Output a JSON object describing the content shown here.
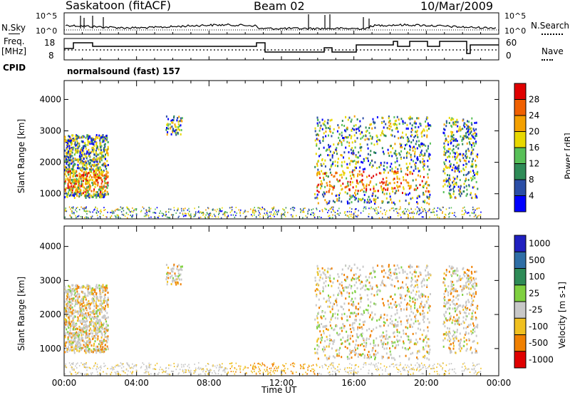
{
  "header": {
    "station": "Saskatoon (fitACF)",
    "beam": "Beam 02",
    "date": "10/Mar/2009"
  },
  "noise_panel": {
    "left_label": "N.Sky",
    "right_label": "N.Search",
    "left_ticks": [
      "10^5",
      "10^0"
    ],
    "right_ticks": [
      "10^5",
      "10^0"
    ]
  },
  "freq_panel": {
    "left_label": "Freq.",
    "left_unit": "[MHz]",
    "left_ticks": [
      "18",
      "8"
    ],
    "right_label": "Nave",
    "right_ticks": [
      "60",
      "0"
    ]
  },
  "cpid": {
    "label": "CPID",
    "value": "normalsound (fast) 157"
  },
  "colors": {
    "power_scale": [
      "#0000ff",
      "#2b4ea6",
      "#2e8b57",
      "#58c058",
      "#e8d800",
      "#f4a000",
      "#f06000",
      "#e00000"
    ],
    "velocity_scale": [
      "#2020c0",
      "#2e6ea6",
      "#2e8b57",
      "#7fd040",
      "#c8c8c8",
      "#f0c020",
      "#f08000",
      "#e00000"
    ],
    "scatter_grey": "#c8c8c8"
  },
  "chart_data": [
    {
      "type": "heatmap",
      "name": "power",
      "ylabel": "Slant Range [km]",
      "xlabel": "",
      "y_ticks": [
        "1000",
        "2000",
        "3000",
        "4000"
      ],
      "ylim": [
        200,
        4600
      ],
      "x_ticks": [
        "00:00",
        "04:00",
        "08:00",
        "12:00",
        "16:00",
        "20:00",
        "00:00"
      ],
      "xlim_hours": [
        0,
        24
      ],
      "colorbar": {
        "label": "Power [dB]",
        "ticks": [
          "4",
          "8",
          "12",
          "16",
          "20",
          "24",
          "28"
        ]
      },
      "echo_regions": [
        {
          "t0": 0.0,
          "t1": 2.4,
          "r0": 900,
          "r1": 2900,
          "level": "strong"
        },
        {
          "t0": 5.6,
          "t1": 6.5,
          "r0": 2900,
          "r1": 3500,
          "level": "weak"
        },
        {
          "t0": 13.8,
          "t1": 20.2,
          "r0": 700,
          "r1": 3500,
          "level": "strong"
        },
        {
          "t0": 20.9,
          "t1": 22.8,
          "r0": 900,
          "r1": 3450,
          "level": "medium"
        }
      ]
    },
    {
      "type": "heatmap",
      "name": "velocity",
      "ylabel": "Slant Range [km]",
      "xlabel": "Time UT",
      "y_ticks": [
        "1000",
        "2000",
        "3000",
        "4000"
      ],
      "ylim": [
        200,
        4600
      ],
      "x_ticks": [
        "00:00",
        "04:00",
        "08:00",
        "12:00",
        "16:00",
        "20:00",
        "00:00"
      ],
      "xlim_hours": [
        0,
        24
      ],
      "colorbar": {
        "label": "Velocity [m s-1]",
        "ticks": [
          "1000",
          "500",
          "100",
          "25",
          "-25",
          "-100",
          "-500",
          "-1000"
        ]
      }
    }
  ]
}
